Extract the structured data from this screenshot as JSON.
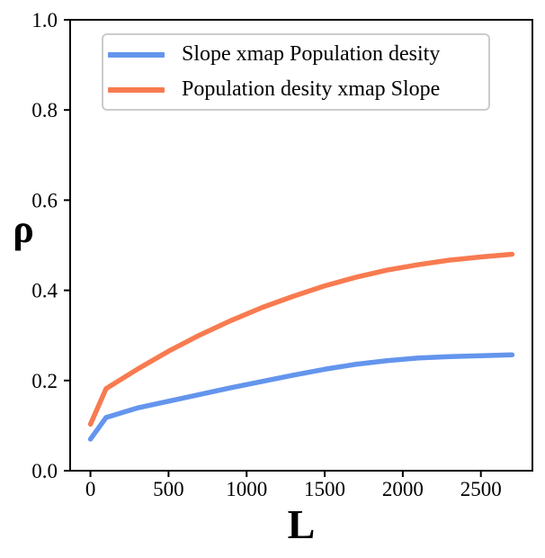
{
  "figure": {
    "background": "#ffffff",
    "axis_color": "#000000"
  },
  "axes": {
    "x_label": "L",
    "y_label": "ρ",
    "x_ticks": [
      0,
      500,
      1000,
      1500,
      2000,
      2500
    ],
    "x_tick_labels": [
      "0",
      "500",
      "1000",
      "1500",
      "2000",
      "2500"
    ],
    "y_ticks": [
      0.0,
      0.2,
      0.4,
      0.6,
      0.8,
      1.0
    ],
    "y_tick_labels": [
      "0.0",
      "0.2",
      "0.4",
      "0.6",
      "0.8",
      "1.0"
    ]
  },
  "legend": {
    "entries": [
      {
        "label": "Slope xmap Population desity",
        "color": "#6495ED"
      },
      {
        "label": "Population desity xmap Slope",
        "color": "#F87B50"
      }
    ]
  },
  "chart_data": {
    "type": "line",
    "title": "",
    "xlabel": "L",
    "ylabel": "ρ",
    "xlim": [
      -130,
      2830
    ],
    "ylim": [
      0.0,
      1.0
    ],
    "grid": false,
    "legend_position": "upper left",
    "x": [
      0,
      100,
      300,
      500,
      700,
      900,
      1100,
      1300,
      1500,
      1700,
      1900,
      2100,
      2300,
      2500,
      2700
    ],
    "series": [
      {
        "name": "Slope xmap Population desity",
        "color": "#6495ED",
        "values": [
          0.07,
          0.118,
          0.139,
          0.154,
          0.169,
          0.184,
          0.198,
          0.212,
          0.225,
          0.236,
          0.244,
          0.25,
          0.253,
          0.255,
          0.257
        ]
      },
      {
        "name": "Population desity xmap Slope",
        "color": "#F87B50",
        "values": [
          0.103,
          0.182,
          0.225,
          0.265,
          0.301,
          0.333,
          0.362,
          0.387,
          0.41,
          0.429,
          0.445,
          0.457,
          0.467,
          0.474,
          0.48
        ]
      }
    ]
  }
}
